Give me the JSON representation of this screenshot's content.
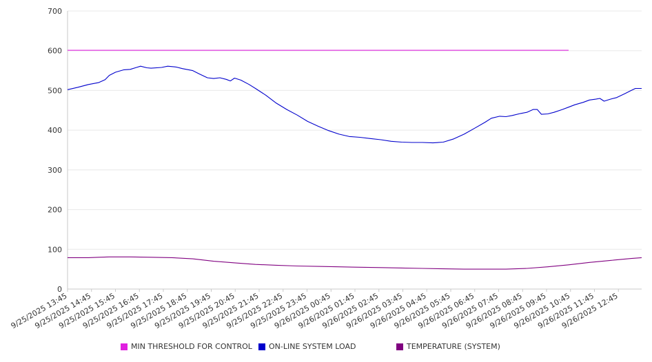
{
  "chart_data": {
    "type": "line",
    "title": "",
    "xlabel": "",
    "ylabel": "",
    "ylim": [
      0,
      700
    ],
    "yticks": [
      0,
      100,
      200,
      300,
      400,
      500,
      600,
      700
    ],
    "grid": true,
    "legend_position": "bottom",
    "x_tick_labels": [
      "9/25/2025 13:45",
      "9/25/2025 14:45",
      "9/25/2025 15:45",
      "9/25/2025 16:45",
      "9/25/2025 17:45",
      "9/25/2025 18:45",
      "9/25/2025 19:45",
      "9/25/2025 20:45",
      "9/25/2025 21:45",
      "9/25/2025 22:45",
      "9/25/2025 23:45",
      "9/26/2025 00:45",
      "9/26/2025 01:45",
      "9/26/2025 02:45",
      "9/26/2025 03:45",
      "9/26/2025 04:45",
      "9/26/2025 05:45",
      "9/26/2025 06:45",
      "9/26/2025 07:45",
      "9/26/2025 08:45",
      "9/26/2025 09:45",
      "9/26/2025 10:45",
      "9/26/2025 11:45",
      "9/26/2025 12:45"
    ],
    "x_range_hours": [
      0,
      24
    ],
    "series": [
      {
        "name": "MIN THRESHOLD FOR CONTROL",
        "color": "#e020e0",
        "points": [
          [
            0,
            601
          ],
          [
            24,
            601
          ]
        ]
      },
      {
        "name": "ON-LINE SYSTEM LOAD",
        "color": "#0000cc",
        "points": [
          [
            0,
            502
          ],
          [
            0.5,
            508
          ],
          [
            1,
            515
          ],
          [
            1.5,
            520
          ],
          [
            1.8,
            527
          ],
          [
            2,
            538
          ],
          [
            2.3,
            546
          ],
          [
            2.7,
            552
          ],
          [
            3,
            553
          ],
          [
            3.3,
            558
          ],
          [
            3.5,
            561
          ],
          [
            3.8,
            557
          ],
          [
            4,
            556
          ],
          [
            4.5,
            558
          ],
          [
            4.8,
            561
          ],
          [
            5.2,
            559
          ],
          [
            5.5,
            555
          ],
          [
            6,
            550
          ],
          [
            6.3,
            542
          ],
          [
            6.7,
            532
          ],
          [
            7,
            530
          ],
          [
            7.3,
            532
          ],
          [
            7.6,
            528
          ],
          [
            7.8,
            524
          ],
          [
            8,
            531
          ],
          [
            8.3,
            526
          ],
          [
            8.7,
            515
          ],
          [
            9,
            505
          ],
          [
            9.5,
            488
          ],
          [
            10,
            468
          ],
          [
            10.5,
            452
          ],
          [
            11,
            438
          ],
          [
            11.5,
            422
          ],
          [
            12,
            410
          ],
          [
            12.5,
            399
          ],
          [
            13,
            390
          ],
          [
            13.5,
            384
          ],
          [
            14,
            382
          ],
          [
            14.5,
            379
          ],
          [
            15,
            376
          ],
          [
            15.5,
            372
          ],
          [
            16,
            370
          ],
          [
            16.5,
            369
          ],
          [
            17,
            369
          ],
          [
            17.5,
            368
          ],
          [
            18,
            370
          ],
          [
            18.5,
            378
          ],
          [
            19,
            390
          ],
          [
            19.5,
            405
          ],
          [
            20,
            420
          ],
          [
            20.3,
            430
          ],
          [
            20.7,
            435
          ],
          [
            21,
            434
          ],
          [
            21.3,
            437
          ],
          [
            21.7,
            442
          ],
          [
            22,
            445
          ],
          [
            22.3,
            452
          ],
          [
            22.5,
            452
          ],
          [
            22.7,
            440
          ],
          [
            23,
            441
          ],
          [
            23.3,
            445
          ],
          [
            23.7,
            452
          ],
          [
            24,
            458
          ],
          [
            24.3,
            464
          ],
          [
            24.7,
            470
          ],
          [
            25,
            476
          ],
          [
            25.3,
            478
          ],
          [
            25.5,
            480
          ],
          [
            25.7,
            473
          ],
          [
            26,
            478
          ],
          [
            26.3,
            482
          ],
          [
            26.7,
            492
          ],
          [
            27,
            500
          ],
          [
            27.2,
            505
          ],
          [
            27.5,
            505
          ]
        ]
      },
      {
        "name": "TEMPERATURE (SYSTEM)",
        "color": "#800080",
        "points": [
          [
            0,
            79
          ],
          [
            1,
            79
          ],
          [
            1.5,
            80
          ],
          [
            2,
            81
          ],
          [
            3,
            81
          ],
          [
            4,
            80
          ],
          [
            5,
            79
          ],
          [
            6,
            76
          ],
          [
            7,
            70
          ],
          [
            8,
            66
          ],
          [
            9,
            62
          ],
          [
            10,
            60
          ],
          [
            11,
            58
          ],
          [
            12,
            57
          ],
          [
            13,
            56
          ],
          [
            14,
            55
          ],
          [
            15,
            54
          ],
          [
            16,
            53
          ],
          [
            17,
            52
          ],
          [
            18,
            51
          ],
          [
            19,
            50
          ],
          [
            20,
            50
          ],
          [
            21,
            50
          ],
          [
            22,
            52
          ],
          [
            23,
            56
          ],
          [
            24,
            61
          ],
          [
            25,
            67
          ],
          [
            26,
            72
          ],
          [
            27,
            77
          ],
          [
            27.5,
            79
          ]
        ]
      }
    ]
  }
}
